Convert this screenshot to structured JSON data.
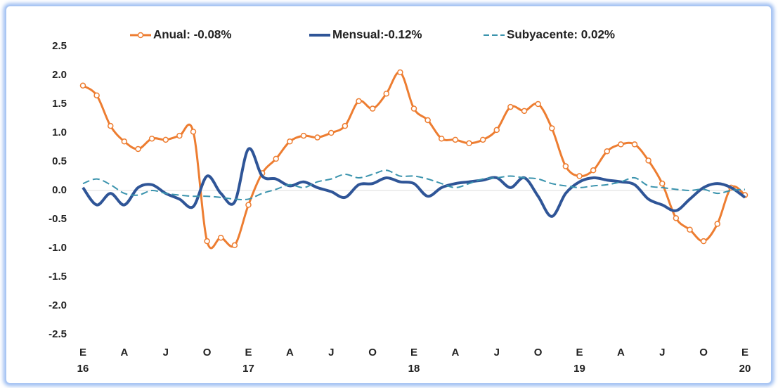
{
  "chart_data": {
    "type": "line",
    "categories": [
      "E",
      null,
      null,
      "A",
      null,
      null,
      "J",
      null,
      null,
      "O",
      null,
      null,
      "E",
      null,
      null,
      "A",
      null,
      null,
      "J",
      null,
      null,
      "O",
      null,
      null,
      "E",
      null,
      null,
      "A",
      null,
      null,
      "J",
      null,
      null,
      "O",
      null,
      null,
      "E",
      null,
      null,
      "A",
      null,
      null,
      "J",
      null,
      null,
      "O",
      null,
      null,
      "E"
    ],
    "years": [
      "16",
      null,
      null,
      null,
      null,
      null,
      null,
      null,
      null,
      null,
      null,
      null,
      "17",
      null,
      null,
      null,
      null,
      null,
      null,
      null,
      null,
      null,
      null,
      null,
      "18",
      null,
      null,
      null,
      null,
      null,
      null,
      null,
      null,
      null,
      null,
      null,
      "19",
      null,
      null,
      null,
      null,
      null,
      null,
      null,
      null,
      null,
      null,
      null,
      "20"
    ],
    "series": [
      {
        "name": "Anual: -0.08%",
        "color": "#ed7d31",
        "style": "markers",
        "values": [
          1.82,
          1.65,
          1.12,
          0.85,
          0.72,
          0.9,
          0.88,
          0.95,
          1.02,
          -0.88,
          -0.82,
          -0.95,
          -0.25,
          0.3,
          0.55,
          0.85,
          0.95,
          0.92,
          1.0,
          1.12,
          1.55,
          1.42,
          1.68,
          2.05,
          1.42,
          1.22,
          0.9,
          0.88,
          0.82,
          0.88,
          1.05,
          1.45,
          1.38,
          1.5,
          1.08,
          0.42,
          0.25,
          0.35,
          0.68,
          0.8,
          0.8,
          0.52,
          0.12,
          -0.48,
          -0.68,
          -0.88,
          -0.58,
          0.05,
          -0.08
        ]
      },
      {
        "name": "Mensual:-0.12%",
        "color": "#2f5597",
        "style": "solid",
        "values": [
          0.05,
          -0.25,
          -0.05,
          -0.25,
          0.05,
          0.1,
          -0.05,
          -0.15,
          -0.28,
          0.25,
          -0.05,
          -0.2,
          0.72,
          0.25,
          0.2,
          0.08,
          0.15,
          0.05,
          -0.02,
          -0.12,
          0.1,
          0.12,
          0.22,
          0.15,
          0.12,
          -0.1,
          0.05,
          0.12,
          0.15,
          0.18,
          0.22,
          0.05,
          0.22,
          -0.1,
          -0.45,
          -0.05,
          0.15,
          0.22,
          0.18,
          0.15,
          0.1,
          -0.15,
          -0.25,
          -0.35,
          -0.15,
          0.05,
          0.12,
          0.05,
          -0.12
        ]
      },
      {
        "name": "Subyacente: 0.02%",
        "color": "#3a93ad",
        "style": "dashed",
        "values": [
          0.12,
          0.2,
          0.1,
          -0.05,
          -0.08,
          0.0,
          -0.05,
          -0.08,
          -0.1,
          -0.1,
          -0.12,
          -0.15,
          -0.15,
          -0.05,
          0.02,
          0.1,
          0.05,
          0.15,
          0.2,
          0.28,
          0.22,
          0.28,
          0.35,
          0.25,
          0.25,
          0.2,
          0.12,
          0.05,
          0.12,
          0.2,
          0.22,
          0.25,
          0.22,
          0.2,
          0.12,
          0.08,
          0.05,
          0.08,
          0.1,
          0.15,
          0.22,
          0.08,
          0.05,
          0.02,
          0.0,
          0.02,
          -0.05,
          0.0,
          0.02
        ]
      }
    ],
    "ylim": [
      -2.5,
      2.5
    ],
    "yticks": [
      {
        "value": -2.5,
        "label": "-2.5"
      },
      {
        "value": -2,
        "label": "-2.0"
      },
      -1.5,
      {
        "value": -1,
        "label": "-1.0"
      },
      -0.5,
      {
        "value": 0,
        "label": "0.0"
      },
      0.5,
      {
        "value": 1,
        "label": "1.0"
      },
      1.5,
      {
        "value": 2,
        "label": "2.0"
      },
      2.5
    ],
    "grid": false,
    "legend": "top"
  }
}
